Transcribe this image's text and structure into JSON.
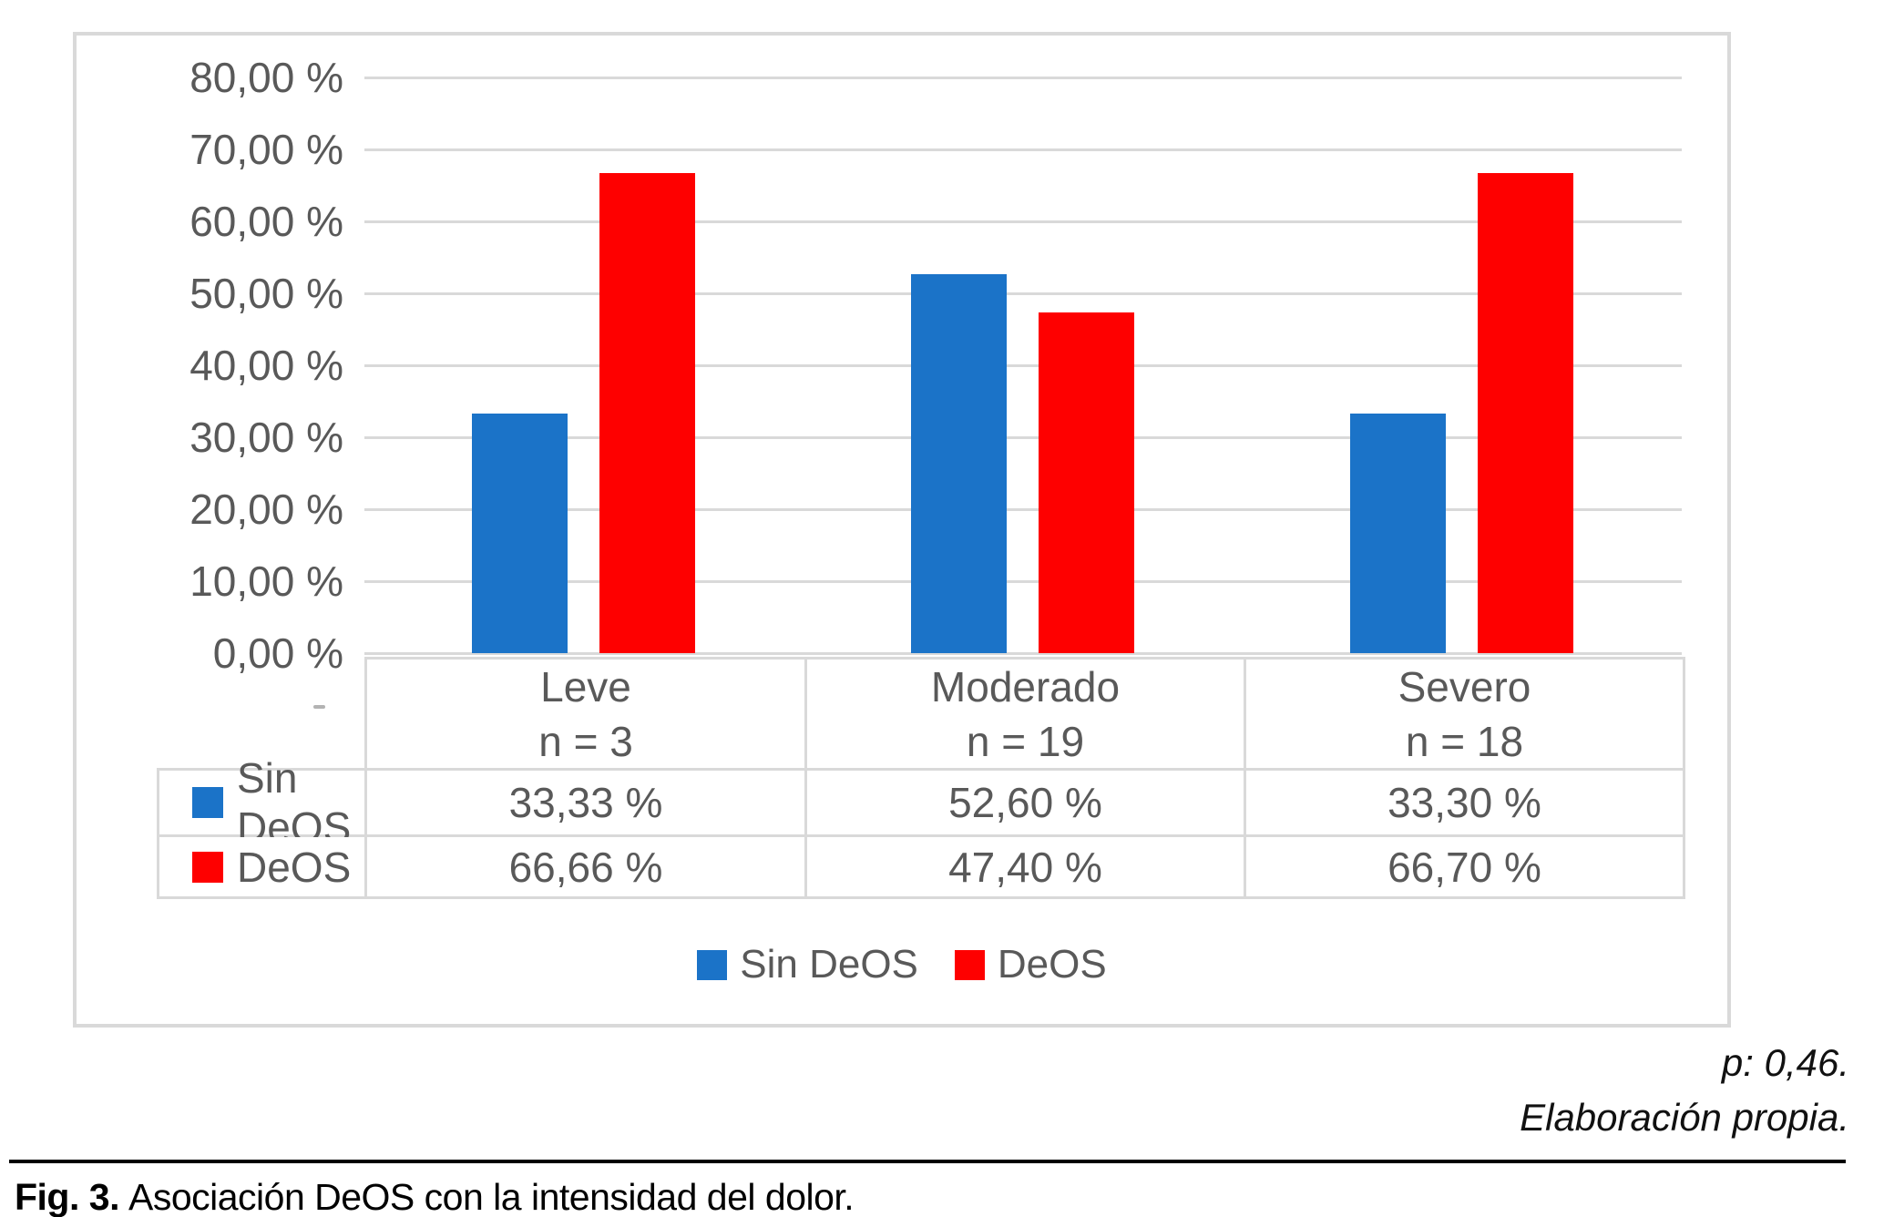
{
  "chart_data": {
    "type": "bar",
    "title": "",
    "categories": [
      "Leve",
      "Moderado",
      "Severo"
    ],
    "category_counts": [
      "n = 3",
      "n = 19",
      "n = 18"
    ],
    "series": [
      {
        "name": "Sin DeOS",
        "color": "#1b73c8",
        "values": [
          33.33,
          52.6,
          33.3
        ],
        "value_labels": [
          "33,33 %",
          "52,60 %",
          "33,30 %"
        ]
      },
      {
        "name": "DeOS",
        "color": "#fe0000",
        "values": [
          66.66,
          47.4,
          66.7
        ],
        "value_labels": [
          "66,66 %",
          "47,40 %",
          "66,70 %"
        ]
      }
    ],
    "y_axis": {
      "ylim": [
        0,
        80
      ],
      "tick_values": [
        80,
        70,
        60,
        50,
        40,
        30,
        20,
        10,
        0
      ],
      "ticks": [
        "80,00 %",
        "70,00 %",
        "60,00 %",
        "50,00 %",
        "40,00 %",
        "30,00 %",
        "20,00 %",
        "10,00 %",
        "0,00 %"
      ],
      "grid": true
    },
    "legend": {
      "position": "bottom",
      "entries": [
        "Sin DeOS",
        "DeOS"
      ]
    },
    "data_table_shown": true
  },
  "annotations": {
    "p_value": "p: 0,46.",
    "source": "Elaboración propia."
  },
  "caption": {
    "label": "Fig. 3.",
    "text": "Asociación DeOS con la intensidad del dolor."
  },
  "colors": {
    "bar_blue": "#1b73c8",
    "bar_red": "#fe0000",
    "grid": "#d9d9d9",
    "axis_text": "#595959"
  }
}
